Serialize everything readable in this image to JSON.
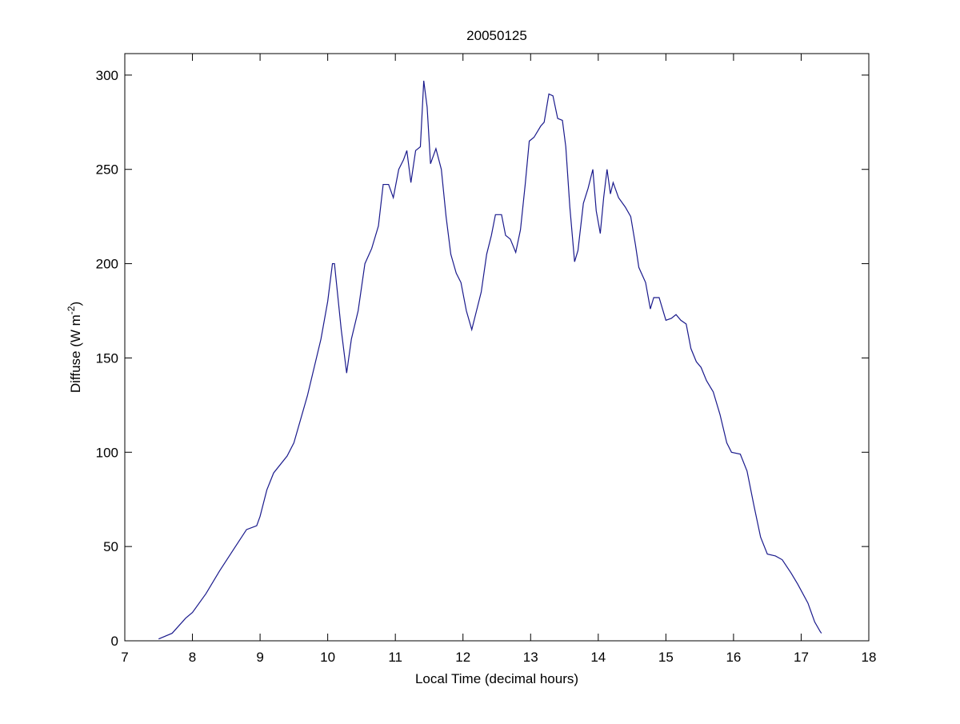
{
  "chart_data": {
    "type": "line",
    "title": "20050125",
    "xlabel": "Local Time (decimal hours)",
    "ylabel": {
      "text": "Diffuse (W m",
      "superscript": "-2",
      "suffix": ")"
    },
    "xlim": [
      7,
      18
    ],
    "xticks": [
      7,
      8,
      9,
      10,
      11,
      12,
      13,
      14,
      15,
      16,
      17,
      18
    ],
    "ylim": [
      0,
      311.4
    ],
    "yticks": [
      0,
      50,
      100,
      150,
      200,
      250,
      300
    ],
    "grid": false,
    "series": [
      {
        "color": "#1a1a8c",
        "x": [
          7.5,
          7.7,
          7.9,
          8.0,
          8.2,
          8.4,
          8.6,
          8.8,
          8.95,
          9.0,
          9.1,
          9.2,
          9.4,
          9.5,
          9.7,
          9.9,
          10.0,
          10.07,
          10.1,
          10.2,
          10.28,
          10.35,
          10.45,
          10.55,
          10.65,
          10.75,
          10.82,
          10.9,
          10.97,
          11.05,
          11.12,
          11.17,
          11.23,
          11.3,
          11.37,
          11.42,
          11.47,
          11.52,
          11.6,
          11.68,
          11.75,
          11.82,
          11.9,
          11.97,
          12.05,
          12.13,
          12.2,
          12.27,
          12.35,
          12.42,
          12.48,
          12.57,
          12.63,
          12.7,
          12.78,
          12.85,
          12.92,
          12.98,
          13.05,
          13.15,
          13.2,
          13.27,
          13.33,
          13.4,
          13.47,
          13.52,
          13.58,
          13.65,
          13.7,
          13.78,
          13.85,
          13.92,
          13.97,
          14.03,
          14.08,
          14.13,
          14.18,
          14.22,
          14.3,
          14.4,
          14.48,
          14.55,
          14.6,
          14.7,
          14.77,
          14.82,
          14.9,
          15.0,
          15.08,
          15.15,
          15.22,
          15.3,
          15.37,
          15.45,
          15.52,
          15.6,
          15.7,
          15.8,
          15.9,
          15.97,
          16.1,
          16.2,
          16.3,
          16.4,
          16.5,
          16.62,
          16.72,
          16.85,
          16.95,
          17.1,
          17.2,
          17.28,
          17.3
        ],
        "values": [
          1,
          4,
          12,
          15,
          25,
          37,
          48,
          59,
          61,
          66,
          80,
          89,
          98,
          105,
          130,
          160,
          180,
          200,
          200,
          165,
          142,
          160,
          175,
          200,
          208,
          220,
          242,
          242,
          235,
          250,
          255,
          260,
          243,
          260,
          262,
          297,
          283,
          253,
          261,
          250,
          225,
          205,
          195,
          190,
          175,
          165,
          175,
          185,
          205,
          215,
          226,
          226,
          215,
          213,
          206,
          218,
          242,
          265,
          267,
          273,
          275,
          290,
          289,
          277,
          276,
          262,
          230,
          201,
          207,
          232,
          240,
          250,
          228,
          216,
          235,
          250,
          237,
          243,
          235,
          230,
          225,
          210,
          198,
          190,
          176,
          182,
          182,
          170,
          171,
          173,
          170,
          168,
          155,
          148,
          145,
          138,
          132,
          120,
          105,
          100,
          99,
          90,
          72,
          55,
          46,
          45,
          43,
          36,
          30,
          20,
          10,
          5,
          4
        ]
      }
    ]
  }
}
